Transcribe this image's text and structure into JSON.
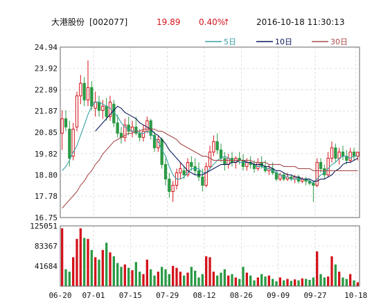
{
  "header": {
    "name": "大港股份",
    "code": "[002077]",
    "price": "19.89",
    "change": "0.40%",
    "change_arrow": "↑",
    "datetime": "2016-10-18  11:30:13"
  },
  "colors": {
    "up": "#d4121a",
    "down": "#2b9a45",
    "ma5": "#39a0a6",
    "ma10": "#0b1a5c",
    "ma30": "#a64b4b"
  },
  "chart_data": [
    {
      "type": "candlestick",
      "title": "",
      "legend": [
        "5日",
        "10日",
        "30日"
      ],
      "legend_placement": "top-right",
      "grid": true,
      "y_ticks": [
        "24.94",
        "23.92",
        "22.89",
        "21.87",
        "20.85",
        "19.82",
        "18.80",
        "17.78",
        "16.75"
      ],
      "ylim": [
        16.75,
        24.94
      ],
      "x_ticks": [
        "06-20",
        "07-01",
        "07-15",
        "07-29",
        "08-12",
        "08-26",
        "09-09",
        "09-27",
        "10-18"
      ],
      "x_tick_index": [
        0,
        9,
        19,
        29,
        39,
        49,
        59,
        69,
        80
      ],
      "candles": [
        [
          20.8,
          21.9,
          20.0,
          21.5
        ],
        [
          21.5,
          21.9,
          20.9,
          21.1
        ],
        [
          21.0,
          21.4,
          19.2,
          19.6
        ],
        [
          19.7,
          21.3,
          19.5,
          21.0
        ],
        [
          21.1,
          22.8,
          20.9,
          22.6
        ],
        [
          22.6,
          23.6,
          22.2,
          23.2
        ],
        [
          23.2,
          23.5,
          22.1,
          22.4
        ],
        [
          22.4,
          24.3,
          22.1,
          23.0
        ],
        [
          23.0,
          23.3,
          21.9,
          22.1
        ],
        [
          22.0,
          22.8,
          21.6,
          22.3
        ],
        [
          22.3,
          22.6,
          21.6,
          21.9
        ],
        [
          21.9,
          22.4,
          21.5,
          22.1
        ],
        [
          22.1,
          22.5,
          21.4,
          21.6
        ],
        [
          21.6,
          22.6,
          21.4,
          22.3
        ],
        [
          22.2,
          22.4,
          21.1,
          21.3
        ],
        [
          21.3,
          21.7,
          20.6,
          20.8
        ],
        [
          20.8,
          21.1,
          20.3,
          20.6
        ],
        [
          20.6,
          21.5,
          20.4,
          21.2
        ],
        [
          21.2,
          21.6,
          20.7,
          20.9
        ],
        [
          20.9,
          21.4,
          20.6,
          21.1
        ],
        [
          21.1,
          21.6,
          20.7,
          20.8
        ],
        [
          20.8,
          21.0,
          20.4,
          20.6
        ],
        [
          20.6,
          21.2,
          20.4,
          20.9
        ],
        [
          20.9,
          21.6,
          20.8,
          21.4
        ],
        [
          21.4,
          21.5,
          20.5,
          20.7
        ],
        [
          20.7,
          20.9,
          19.9,
          20.1
        ],
        [
          20.1,
          20.7,
          19.9,
          20.5
        ],
        [
          20.5,
          20.6,
          19.1,
          19.3
        ],
        [
          19.3,
          19.6,
          18.3,
          18.6
        ],
        [
          18.6,
          18.9,
          17.7,
          18.0
        ],
        [
          18.0,
          18.5,
          17.5,
          18.3
        ],
        [
          18.3,
          19.1,
          18.1,
          18.9
        ],
        [
          18.9,
          19.4,
          18.6,
          19.1
        ],
        [
          19.0,
          19.2,
          18.6,
          18.8
        ],
        [
          18.8,
          19.6,
          18.7,
          19.4
        ],
        [
          19.4,
          19.7,
          19.0,
          19.2
        ],
        [
          19.2,
          19.6,
          18.8,
          19.0
        ],
        [
          19.0,
          19.4,
          18.5,
          18.7
        ],
        [
          18.7,
          19.1,
          18.0,
          18.3
        ],
        [
          18.3,
          19.4,
          18.2,
          19.2
        ],
        [
          19.2,
          20.2,
          19.1,
          19.9
        ],
        [
          19.9,
          20.7,
          19.7,
          20.4
        ],
        [
          20.4,
          20.8,
          19.8,
          20.0
        ],
        [
          20.0,
          20.3,
          19.4,
          19.6
        ],
        [
          19.6,
          19.9,
          19.0,
          19.3
        ],
        [
          19.3,
          19.8,
          19.1,
          19.6
        ],
        [
          19.6,
          19.9,
          19.2,
          19.4
        ],
        [
          19.4,
          19.7,
          19.1,
          19.6
        ],
        [
          19.6,
          19.9,
          19.3,
          19.5
        ],
        [
          19.5,
          19.8,
          19.0,
          19.2
        ],
        [
          19.2,
          19.6,
          19.0,
          19.4
        ],
        [
          19.4,
          19.7,
          19.1,
          19.3
        ],
        [
          19.3,
          19.5,
          18.9,
          19.1
        ],
        [
          19.1,
          19.6,
          19.0,
          19.4
        ],
        [
          19.4,
          19.7,
          19.1,
          19.2
        ],
        [
          19.2,
          19.5,
          18.9,
          19.0
        ],
        [
          19.0,
          19.3,
          18.8,
          19.1
        ],
        [
          19.1,
          19.4,
          18.8,
          18.9
        ],
        [
          18.9,
          19.0,
          18.5,
          18.6
        ],
        [
          18.6,
          18.9,
          18.5,
          18.8
        ],
        [
          18.8,
          18.9,
          18.5,
          18.6
        ],
        [
          18.6,
          18.9,
          18.5,
          18.7
        ],
        [
          18.7,
          18.8,
          18.5,
          18.6
        ],
        [
          18.6,
          18.8,
          18.4,
          18.7
        ],
        [
          18.7,
          18.8,
          18.4,
          18.5
        ],
        [
          18.5,
          18.7,
          18.4,
          18.6
        ],
        [
          18.6,
          18.7,
          18.3,
          18.5
        ],
        [
          18.5,
          18.6,
          18.3,
          18.4
        ],
        [
          18.4,
          18.5,
          17.5,
          18.3
        ],
        [
          18.3,
          19.6,
          18.2,
          19.4
        ],
        [
          19.4,
          19.6,
          18.9,
          19.1
        ],
        [
          19.1,
          19.3,
          18.6,
          18.8
        ],
        [
          18.8,
          19.9,
          18.7,
          19.6
        ],
        [
          19.6,
          20.4,
          19.4,
          20.1
        ],
        [
          20.1,
          20.3,
          19.4,
          19.6
        ],
        [
          19.6,
          20.1,
          19.3,
          19.9
        ],
        [
          19.9,
          20.2,
          19.5,
          19.7
        ],
        [
          19.7,
          20.0,
          19.3,
          19.5
        ],
        [
          19.5,
          20.1,
          19.4,
          19.9
        ],
        [
          19.9,
          20.1,
          19.5,
          19.7
        ],
        [
          19.7,
          19.9,
          19.5,
          19.89
        ]
      ],
      "ma5": [
        19.0,
        19.2,
        19.5,
        19.9,
        20.2,
        20.7,
        21.2,
        21.7,
        22.1,
        22.3,
        22.3,
        22.2,
        22.1,
        22.0,
        21.8,
        21.6,
        21.3,
        21.1,
        21.0,
        20.9,
        20.9,
        20.8,
        20.8,
        20.9,
        20.8,
        20.6,
        20.4,
        20.0,
        19.7,
        19.2,
        18.8,
        18.6,
        18.6,
        18.7,
        18.9,
        19.1,
        19.1,
        19.1,
        18.9,
        18.9,
        19.1,
        19.3,
        19.5,
        19.6,
        19.7,
        19.6,
        19.5,
        19.5,
        19.4,
        19.4,
        19.4,
        19.4,
        19.3,
        19.2,
        19.2,
        19.1,
        19.1,
        19.0,
        18.9,
        18.8,
        18.7,
        18.7,
        18.6,
        18.6,
        18.6,
        18.6,
        18.6,
        18.5,
        18.4,
        18.6,
        18.8,
        18.9,
        19.1,
        19.3,
        19.4,
        19.6,
        19.7,
        19.7,
        19.6,
        19.7,
        19.7
      ],
      "ma10": [
        null,
        null,
        null,
        null,
        null,
        null,
        null,
        null,
        null,
        20.9,
        21.1,
        21.3,
        21.5,
        21.7,
        21.9,
        22.1,
        22.0,
        21.8,
        21.7,
        21.6,
        21.5,
        21.3,
        21.2,
        21.1,
        21.0,
        20.8,
        20.7,
        20.5,
        20.3,
        20.0,
        19.8,
        19.6,
        19.4,
        19.2,
        19.0,
        18.9,
        18.8,
        18.8,
        18.8,
        18.9,
        19.0,
        19.1,
        19.2,
        19.3,
        19.3,
        19.3,
        19.4,
        19.4,
        19.5,
        19.5,
        19.4,
        19.4,
        19.3,
        19.3,
        19.3,
        19.2,
        19.2,
        19.1,
        19.0,
        19.0,
        18.9,
        18.8,
        18.8,
        18.7,
        18.7,
        18.6,
        18.6,
        18.6,
        18.5,
        18.5,
        18.6,
        18.6,
        18.7,
        18.8,
        19.0,
        19.1,
        19.3,
        19.4,
        19.4,
        19.5,
        19.6
      ],
      "ma30": [
        17.2,
        17.4,
        17.6,
        17.8,
        18.0,
        18.3,
        18.5,
        18.8,
        19.0,
        19.3,
        19.5,
        19.8,
        20.0,
        20.2,
        20.4,
        20.5,
        20.6,
        20.7,
        20.8,
        20.8,
        20.9,
        20.9,
        21.0,
        21.0,
        21.0,
        21.0,
        20.9,
        20.9,
        20.8,
        20.7,
        20.6,
        20.5,
        20.3,
        20.2,
        20.1,
        20.0,
        19.9,
        19.8,
        19.7,
        19.7,
        19.6,
        19.5,
        19.5,
        19.5,
        19.5,
        19.5,
        19.5,
        19.5,
        19.5,
        19.5,
        19.5,
        19.5,
        19.4,
        19.4,
        19.4,
        19.4,
        19.3,
        19.3,
        19.3,
        19.3,
        19.2,
        19.2,
        19.2,
        19.2,
        19.1,
        19.1,
        19.1,
        19.1,
        19.0,
        19.0,
        19.0,
        19.0,
        19.0,
        19.0,
        19.0,
        19.0,
        19.0,
        19.0,
        19.0,
        19.0,
        19.0
      ]
    },
    {
      "type": "bar",
      "title": "",
      "y_ticks": [
        "125051",
        "83367",
        "41684"
      ],
      "ylim": [
        0,
        125051
      ],
      "values": [
        120000,
        35000,
        30000,
        60000,
        98000,
        120000,
        100000,
        98000,
        75000,
        60000,
        55000,
        75000,
        90000,
        70000,
        62000,
        48000,
        40000,
        45000,
        38000,
        33000,
        50000,
        30000,
        25000,
        55000,
        35000,
        22000,
        30000,
        40000,
        35000,
        25000,
        42000,
        38000,
        30000,
        22000,
        28000,
        40000,
        32000,
        18000,
        25000,
        62000,
        60000,
        30000,
        22000,
        28000,
        35000,
        22000,
        25000,
        18000,
        15000,
        40000,
        28000,
        22000,
        12000,
        18000,
        25000,
        20000,
        22000,
        15000,
        10000,
        18000,
        12000,
        15000,
        11000,
        14000,
        12000,
        16000,
        15000,
        13000,
        18000,
        72000,
        25000,
        18000,
        20000,
        62000,
        45000,
        30000,
        18000,
        15000,
        25000,
        12000,
        8000
      ]
    }
  ]
}
